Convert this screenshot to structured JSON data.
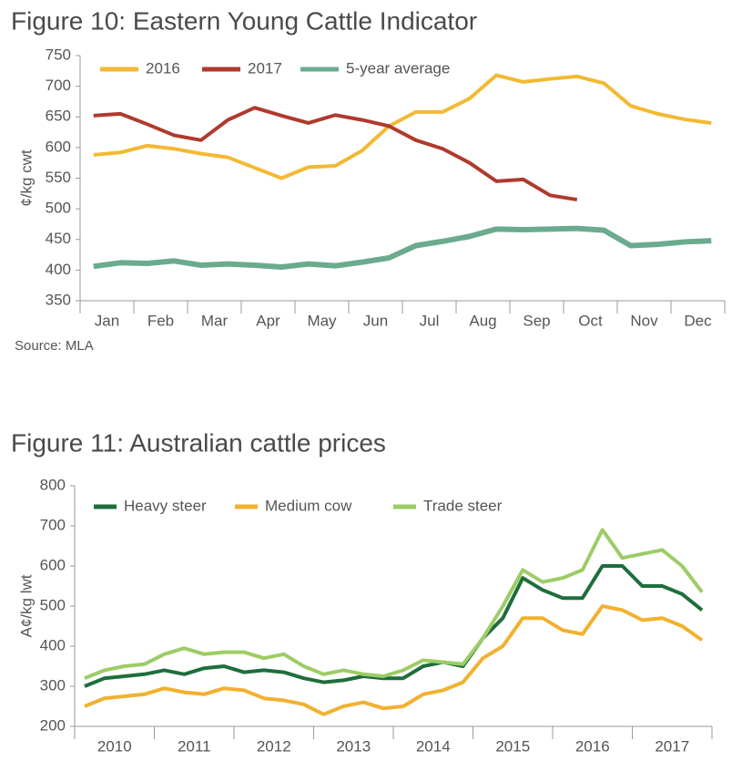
{
  "chart_data": [
    {
      "type": "line",
      "title": "Figure 10: Eastern Young Cattle Indicator",
      "y_label": "¢/kg cwt",
      "source": "Source: MLA",
      "categories": [
        "Jan",
        null,
        "Feb",
        null,
        "Mar",
        null,
        "Apr",
        null,
        "May",
        null,
        "Jun",
        null,
        "Jul",
        null,
        "Aug",
        null,
        "Sep",
        null,
        "Oct",
        null,
        "Nov",
        null,
        "Dec",
        null
      ],
      "ylim": [
        350,
        750
      ],
      "yticks": [
        350,
        400,
        450,
        500,
        550,
        600,
        650,
        700,
        750
      ],
      "grid": false,
      "legend": "top",
      "series": [
        {
          "name": "2016",
          "color": "#f2b933",
          "values": [
            588,
            592,
            603,
            598,
            590,
            584,
            567,
            550,
            568,
            570,
            595,
            635,
            658,
            658,
            680,
            718,
            707,
            712,
            716,
            705,
            668,
            655,
            646,
            640
          ]
        },
        {
          "name": "2017",
          "color": "#b03a2e",
          "values": [
            652,
            655,
            638,
            620,
            612,
            645,
            665,
            652,
            640,
            653,
            645,
            635,
            612,
            598,
            575,
            545,
            548,
            522,
            515,
            null,
            null,
            null,
            null,
            null
          ]
        },
        {
          "name": "5-year average",
          "color": "#6aab8e",
          "values": [
            406,
            412,
            411,
            415,
            408,
            410,
            408,
            405,
            410,
            407,
            413,
            420,
            440,
            447,
            455,
            467,
            466,
            467,
            468,
            465,
            440,
            442,
            446,
            448
          ]
        }
      ]
    },
    {
      "type": "line",
      "title": "Figure 11: Australian cattle prices",
      "y_label": "A¢/kg lwt",
      "categories": [
        "2010",
        null,
        null,
        null,
        "2011",
        null,
        null,
        null,
        "2012",
        null,
        null,
        null,
        "2013",
        null,
        null,
        null,
        "2014",
        null,
        null,
        null,
        "2015",
        null,
        null,
        null,
        "2016",
        null,
        null,
        null,
        "2017",
        null,
        null,
        null
      ],
      "ylim": [
        200,
        800
      ],
      "yticks": [
        200,
        300,
        400,
        500,
        600,
        700,
        800
      ],
      "grid": false,
      "legend": "top",
      "series": [
        {
          "name": "Heavy steer",
          "color": "#1e6e3c",
          "values": [
            300,
            320,
            325,
            330,
            340,
            330,
            345,
            350,
            335,
            340,
            335,
            320,
            310,
            315,
            325,
            320,
            320,
            350,
            360,
            350,
            420,
            470,
            570,
            540,
            520,
            520,
            600,
            600,
            550,
            550,
            530,
            490
          ]
        },
        {
          "name": "Medium cow",
          "color": "#f2b12e",
          "values": [
            250,
            270,
            275,
            280,
            295,
            285,
            280,
            295,
            290,
            270,
            265,
            255,
            230,
            250,
            260,
            245,
            250,
            280,
            290,
            310,
            370,
            400,
            470,
            470,
            440,
            430,
            500,
            490,
            465,
            470,
            450,
            415
          ]
        },
        {
          "name": "Trade steer",
          "color": "#9dcc66",
          "values": [
            320,
            340,
            350,
            355,
            380,
            395,
            380,
            385,
            385,
            370,
            380,
            350,
            330,
            340,
            330,
            325,
            340,
            365,
            360,
            355,
            420,
            500,
            590,
            560,
            570,
            590,
            690,
            620,
            630,
            640,
            600,
            535
          ]
        }
      ]
    }
  ]
}
